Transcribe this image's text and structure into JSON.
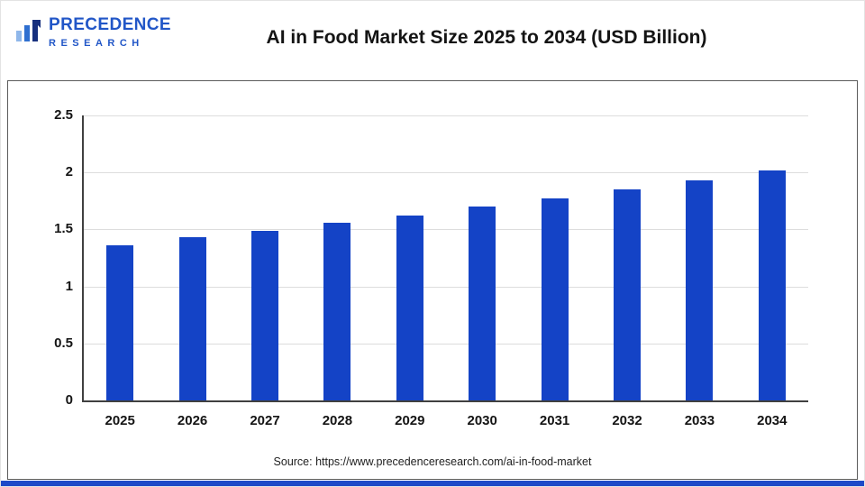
{
  "header": {
    "logo_line1": "PRECEDENCE",
    "logo_line2": "RESEARCH",
    "title": "AI in Food Market Size 2025 to 2034 (USD Billion)"
  },
  "chart_data": {
    "type": "bar",
    "title": "AI in Food Market Size 2025 to 2034 (USD Billion)",
    "categories": [
      "2025",
      "2026",
      "2027",
      "2028",
      "2029",
      "2030",
      "2031",
      "2032",
      "2033",
      "2034"
    ],
    "values": [
      1.36,
      1.43,
      1.49,
      1.56,
      1.62,
      1.7,
      1.77,
      1.85,
      1.93,
      2.02
    ],
    "xlabel": "",
    "ylabel": "",
    "ylim": [
      0,
      2.5
    ],
    "yticks": [
      0,
      0.5,
      1,
      1.5,
      2,
      2.5
    ],
    "grid": true,
    "legend": false,
    "bar_color": "#1443c6"
  },
  "footer": {
    "source": "Source: https://www.precedenceresearch.com/ai-in-food-market"
  },
  "colors": {
    "accent": "#1443c6",
    "logo_blue": "#2156c7",
    "bottom_strip": "#1d49c8"
  }
}
